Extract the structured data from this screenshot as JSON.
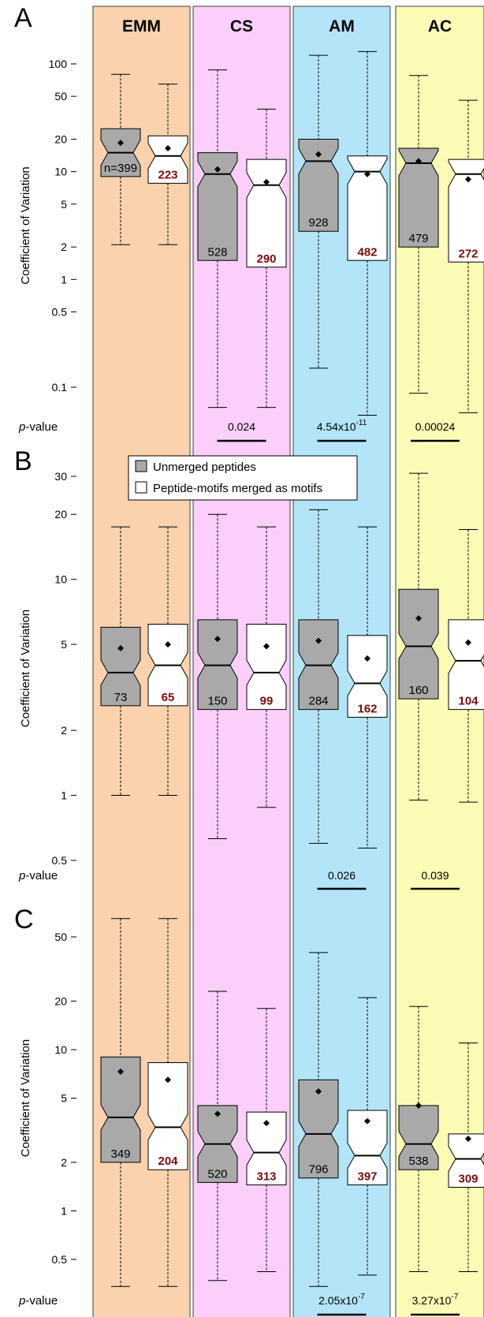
{
  "groups": [
    {
      "name": "EMM",
      "color": "#fad2ad"
    },
    {
      "name": "CS",
      "color": "#fbcff9"
    },
    {
      "name": "AM",
      "color": "#b3e4f8"
    },
    {
      "name": "AC",
      "color": "#fcfcb6"
    }
  ],
  "legend": {
    "unmerged": "Unmerged peptides",
    "merged": "Peptide-motifs merged as motifs",
    "unmerged_color": "#a9a9a9",
    "merged_color": "#ffffff"
  },
  "y_axis_label": "Coefficient of Variation",
  "p_value_label": "p-value",
  "chart_data": [
    {
      "panel": "A",
      "type": "boxplot",
      "y_scale": "log",
      "yticks": [
        "100",
        "50",
        "20",
        "10",
        "5",
        "2",
        "1",
        "0.5",
        "0.1"
      ],
      "p_values": [
        {
          "group": "CS",
          "text": "0.024"
        },
        {
          "group": "AM",
          "base": "4.54x10",
          "exp": "-11"
        },
        {
          "group": "AC",
          "text": "0.00024"
        }
      ],
      "boxes": [
        {
          "group": "EMM",
          "series": "unmerged",
          "n_label": "n=399",
          "q1": 9.0,
          "median": 15.0,
          "q3": 25.0,
          "whisker_low": 2.1,
          "whisker_high": 80,
          "mean": 18.5
        },
        {
          "group": "EMM",
          "series": "merged",
          "n_label": "223",
          "q1": 7.8,
          "median": 14.0,
          "q3": 21.5,
          "whisker_low": 2.1,
          "whisker_high": 65,
          "mean": 16.5
        },
        {
          "group": "CS",
          "series": "unmerged",
          "n_label": "528",
          "q1": 1.5,
          "median": 9.5,
          "q3": 15.0,
          "whisker_low": 0.065,
          "whisker_high": 88,
          "mean": 10.5
        },
        {
          "group": "CS",
          "series": "merged",
          "n_label": "290",
          "q1": 1.3,
          "median": 7.5,
          "q3": 13.0,
          "whisker_low": 0.065,
          "whisker_high": 38,
          "mean": 8.0
        },
        {
          "group": "AM",
          "series": "unmerged",
          "n_label": "928",
          "q1": 2.8,
          "median": 12.5,
          "q3": 20.0,
          "whisker_low": 0.15,
          "whisker_high": 120,
          "mean": 14.5
        },
        {
          "group": "AM",
          "series": "merged",
          "n_label": "482",
          "q1": 1.5,
          "median": 10.0,
          "q3": 14.0,
          "whisker_low": 0.055,
          "whisker_high": 130,
          "mean": 9.5
        },
        {
          "group": "AC",
          "series": "unmerged",
          "n_label": "479",
          "q1": 2.0,
          "median": 12.0,
          "q3": 16.5,
          "whisker_low": 0.088,
          "whisker_high": 78,
          "mean": 12.5
        },
        {
          "group": "AC",
          "series": "merged",
          "n_label": "272",
          "q1": 1.45,
          "median": 9.5,
          "q3": 13.0,
          "whisker_low": 0.058,
          "whisker_high": 46,
          "mean": 8.5
        }
      ]
    },
    {
      "panel": "B",
      "type": "boxplot",
      "y_scale": "log",
      "yticks": [
        "30",
        "20",
        "10",
        "5",
        "2",
        "1",
        "0.5"
      ],
      "p_values": [
        {
          "group": "AM",
          "text": "0.026"
        },
        {
          "group": "AC",
          "text": "0.039"
        }
      ],
      "boxes": [
        {
          "group": "EMM",
          "series": "unmerged",
          "n_label": "73",
          "q1": 2.6,
          "median": 3.7,
          "q3": 6.0,
          "whisker_low": 1.0,
          "whisker_high": 17.5,
          "mean": 4.8
        },
        {
          "group": "EMM",
          "series": "merged",
          "n_label": "65",
          "q1": 2.6,
          "median": 4.0,
          "q3": 6.2,
          "whisker_low": 1.0,
          "whisker_high": 17.5,
          "mean": 5.0
        },
        {
          "group": "CS",
          "series": "unmerged",
          "n_label": "150",
          "q1": 2.5,
          "median": 4.0,
          "q3": 6.5,
          "whisker_low": 0.63,
          "whisker_high": 20,
          "mean": 5.3
        },
        {
          "group": "CS",
          "series": "merged",
          "n_label": "99",
          "q1": 2.5,
          "median": 3.7,
          "q3": 6.2,
          "whisker_low": 0.88,
          "whisker_high": 17.5,
          "mean": 4.9
        },
        {
          "group": "AM",
          "series": "unmerged",
          "n_label": "284",
          "q1": 2.5,
          "median": 4.0,
          "q3": 6.5,
          "whisker_low": 0.6,
          "whisker_high": 21,
          "mean": 5.2
        },
        {
          "group": "AM",
          "series": "merged",
          "n_label": "162",
          "q1": 2.3,
          "median": 3.3,
          "q3": 5.5,
          "whisker_low": 0.57,
          "whisker_high": 17.5,
          "mean": 4.3
        },
        {
          "group": "AC",
          "series": "unmerged",
          "n_label": "160",
          "q1": 2.8,
          "median": 4.9,
          "q3": 9.0,
          "whisker_low": 0.95,
          "whisker_high": 31,
          "mean": 6.6
        },
        {
          "group": "AC",
          "series": "merged",
          "n_label": "104",
          "q1": 2.5,
          "median": 4.2,
          "q3": 6.5,
          "whisker_low": 0.93,
          "whisker_high": 17,
          "mean": 5.1
        }
      ]
    },
    {
      "panel": "C",
      "type": "boxplot",
      "y_scale": "log",
      "yticks": [
        "50",
        "20",
        "10",
        "5",
        "2",
        "1",
        "0.5"
      ],
      "p_values": [
        {
          "group": "AM",
          "base": "2.05x10",
          "exp": "-7"
        },
        {
          "group": "AC",
          "base": "3.27x10",
          "exp": "-7"
        }
      ],
      "boxes": [
        {
          "group": "EMM",
          "series": "unmerged",
          "n_label": "349",
          "q1": 2.0,
          "median": 3.8,
          "q3": 9.0,
          "whisker_low": 0.34,
          "whisker_high": 65,
          "mean": 7.3
        },
        {
          "group": "EMM",
          "series": "merged",
          "n_label": "204",
          "q1": 1.8,
          "median": 3.3,
          "q3": 8.3,
          "whisker_low": 0.34,
          "whisker_high": 65,
          "mean": 6.5
        },
        {
          "group": "CS",
          "series": "unmerged",
          "n_label": "520",
          "q1": 1.5,
          "median": 2.6,
          "q3": 4.5,
          "whisker_low": 0.37,
          "whisker_high": 23,
          "mean": 4.0
        },
        {
          "group": "CS",
          "series": "merged",
          "n_label": "313",
          "q1": 1.45,
          "median": 2.3,
          "q3": 4.1,
          "whisker_low": 0.42,
          "whisker_high": 18,
          "mean": 3.5
        },
        {
          "group": "AM",
          "series": "unmerged",
          "n_label": "796",
          "q1": 1.6,
          "median": 3.0,
          "q3": 6.5,
          "whisker_low": 0.34,
          "whisker_high": 40,
          "mean": 5.5
        },
        {
          "group": "AM",
          "series": "merged",
          "n_label": "397",
          "q1": 1.45,
          "median": 2.2,
          "q3": 4.2,
          "whisker_low": 0.4,
          "whisker_high": 21,
          "mean": 3.6
        },
        {
          "group": "AC",
          "series": "unmerged",
          "n_label": "538",
          "q1": 1.8,
          "median": 2.6,
          "q3": 4.5,
          "whisker_low": 0.42,
          "whisker_high": 18.5,
          "mean": 4.5
        },
        {
          "group": "AC",
          "series": "merged",
          "n_label": "309",
          "q1": 1.4,
          "median": 2.1,
          "q3": 3.0,
          "whisker_low": 0.42,
          "whisker_high": 11,
          "mean": 2.8
        }
      ]
    }
  ]
}
